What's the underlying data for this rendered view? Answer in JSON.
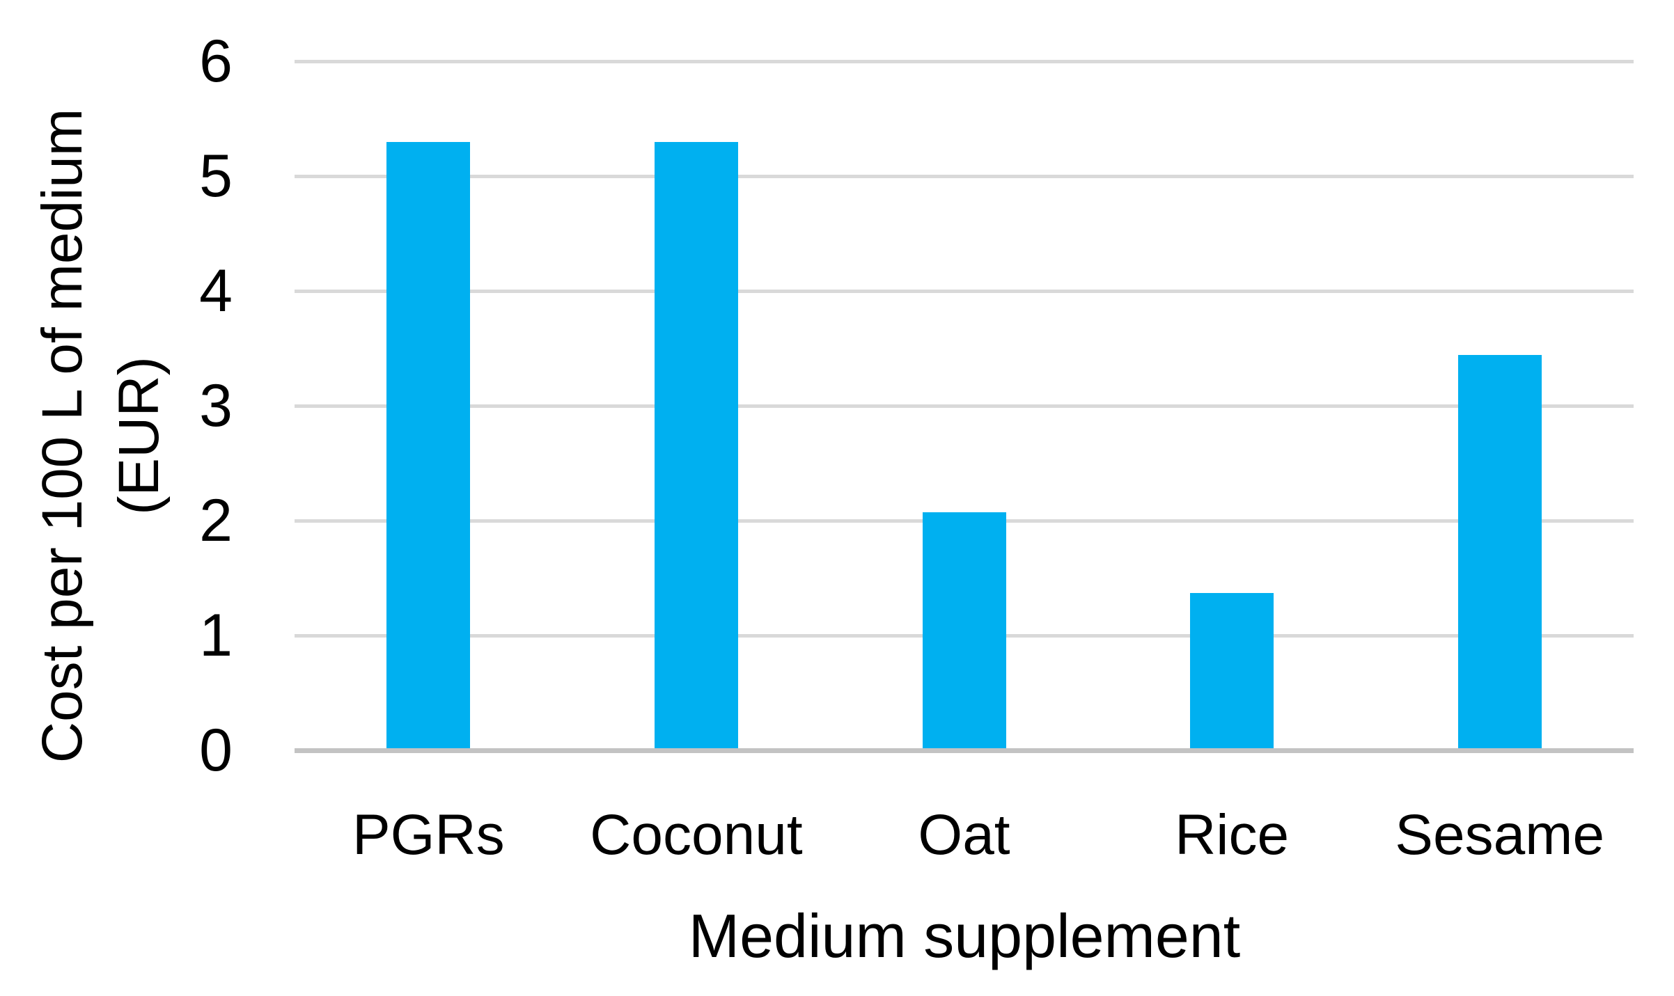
{
  "figure": {
    "background_color": "#ffffff",
    "bar_color": "#00b0f0",
    "gridline_color": "#d9d9d9",
    "axis_line_color": "#c3c3c3",
    "text_color": "#000000"
  },
  "chart_data": {
    "type": "bar",
    "categories": [
      "PGRs",
      "Coconut",
      "Oat",
      "Rice",
      "Sesame"
    ],
    "values": [
      5.3,
      5.3,
      2.07,
      1.37,
      3.44
    ],
    "title": "",
    "xlabel": "Medium supplement",
    "ylabel": "Cost per 100 L of medium (EUR)",
    "ylabel_lines": [
      "Cost per 100 L of medium",
      "(EUR)"
    ],
    "ylim": [
      0,
      6
    ],
    "yticks": [
      0,
      1,
      2,
      3,
      4,
      5,
      6
    ],
    "grid": "horizontal",
    "legend": "none",
    "series_name": "Cost per 100 L of medium (EUR)"
  }
}
